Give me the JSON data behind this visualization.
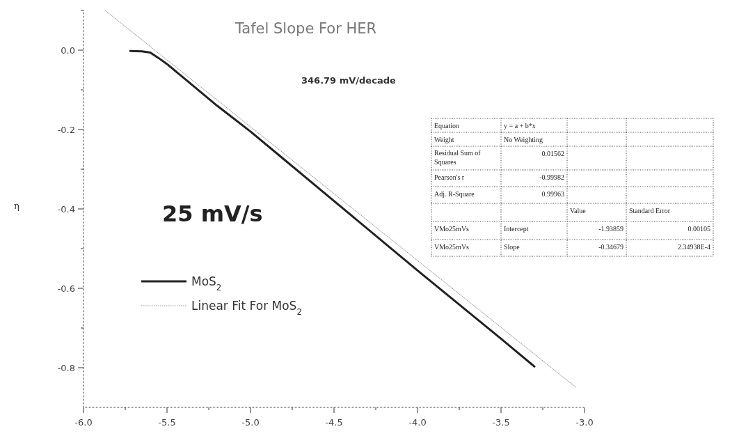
{
  "chart_data": {
    "type": "line",
    "title": "Tafel Slope For HER",
    "ylabel": "η",
    "annotations": [
      "346.79 mV/decade",
      "25 mV/s",
      "Equation",
      "y = a + b*x",
      "Weight",
      "No Weighting",
      "Residual Sum of Squares",
      "0.01562",
      "Pearson's r",
      "-0.99982",
      "Adj. R-Square",
      "0.99963",
      "Value",
      "Standard Error",
      "VMo25mVs",
      "Intercept",
      "-1.93859",
      "0.00105",
      "VMo25mVs",
      "Slope",
      "-0.34679",
      "2.34938E-4"
    ],
    "xlim": [
      -6.0,
      -3.0
    ],
    "xticks": [
      {
        "value": -6.0,
        "label": "-6.0"
      },
      {
        "value": -5.75,
        "label": null
      },
      {
        "value": -5.5,
        "label": "-5.5"
      },
      {
        "value": -5.25,
        "label": null
      },
      {
        "value": -5.0,
        "label": "-5.0"
      },
      {
        "value": -4.75,
        "label": null
      },
      {
        "value": -4.5,
        "label": "-4.5"
      },
      {
        "value": -4.25,
        "label": null
      },
      {
        "value": -4.0,
        "label": "-4.0"
      },
      {
        "value": -3.75,
        "label": null
      },
      {
        "value": -3.5,
        "label": "-3.5"
      },
      {
        "value": -3.25,
        "label": null
      },
      {
        "value": -3.0,
        "label": "-3.0"
      }
    ],
    "ylim": [
      -0.9,
      0.1
    ],
    "yticks": [
      {
        "value": 0.1,
        "label": null
      },
      {
        "value": 0.0,
        "label": "0.0"
      },
      {
        "value": -0.1,
        "label": null
      },
      {
        "value": -0.2,
        "label": "-0.2"
      },
      {
        "value": -0.3,
        "label": null
      },
      {
        "value": -0.4,
        "label": "-0.4"
      },
      {
        "value": -0.5,
        "label": null
      },
      {
        "value": -0.6,
        "label": "-0.6"
      },
      {
        "value": -0.7,
        "label": null
      },
      {
        "value": -0.8,
        "label": "-0.8"
      }
    ],
    "legend": "bottom left",
    "marker": "none",
    "series": [
      {
        "name": "MoS$_{2}$",
        "color": "#222222",
        "line_style": "solid",
        "x": [
          -5.72,
          -5.65,
          -5.6,
          -5.55,
          -5.5,
          -5.4,
          -5.2,
          -5.0,
          -4.8,
          -4.5,
          -4.0,
          -3.5,
          -3.3
        ],
        "values": [
          -0.002,
          -0.003,
          -0.006,
          -0.02,
          -0.035,
          -0.07,
          -0.14,
          -0.205,
          -0.275,
          -0.38,
          -0.555,
          -0.727,
          -0.797
        ]
      },
      {
        "name": "Linear Fit For MoS$_{2}$",
        "color": "#999999",
        "line_style": "dotted",
        "x": [
          -5.87,
          -3.05
        ],
        "values": [
          0.1,
          -0.85
        ]
      }
    ]
  }
}
